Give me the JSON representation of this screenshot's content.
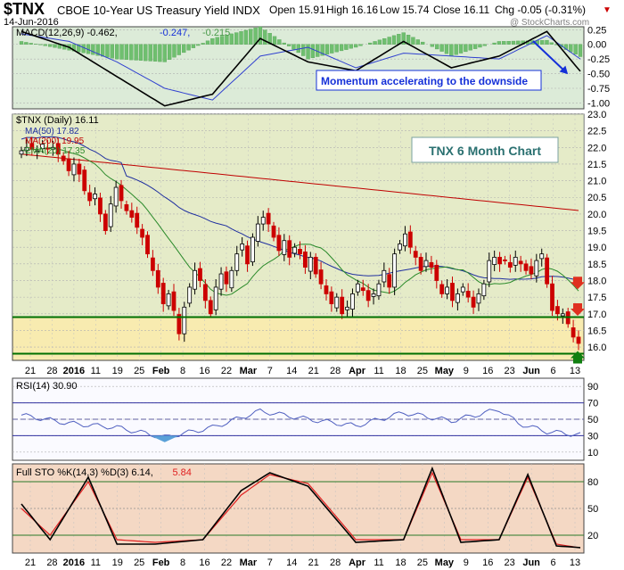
{
  "header": {
    "symbol": "$TNX",
    "name": "CBOE 10-Year US Treasury Yield INDX",
    "date": "14-Jun-2016",
    "open": "Open 15.91",
    "high": "High 16.16",
    "low": "Low 15.74",
    "close": "Close 16.11",
    "chg": "Chg -0.05 (-0.31%)",
    "watermark": "@ StockCharts.com"
  },
  "colors": {
    "macd_bg": "#dcebd8",
    "price_bg": "#f8ebb0",
    "rsi_bg": "#fafaff",
    "sto_bg": "#f4d8c4",
    "up": "#000000",
    "down": "#cc0000",
    "ma50": "#2030a0",
    "ma200": "#c00000",
    "ema20": "#2a8a2a",
    "annot_blue": "#1530d8",
    "support_green": "#007000"
  },
  "chart_data": [
    {
      "type": "line",
      "title": "MACD(12,26,9) -0.462, -0.247, -0.215",
      "legend": [
        "MACD(12,26,9) -0.462",
        "-0.247",
        "-0.215"
      ],
      "ylim": [
        -1.1,
        0.3
      ],
      "y_ticks": [
        "0.25",
        "0.00",
        "-0.25",
        "-0.50",
        "-0.75",
        "-1.00"
      ],
      "x": [
        0,
        10,
        20,
        30,
        40,
        50,
        60,
        70,
        80,
        90,
        100,
        110,
        117
      ],
      "series": [
        {
          "name": "MACD",
          "values": [
            0.22,
            -0.05,
            -0.55,
            -1.05,
            -0.85,
            0.1,
            -0.3,
            -0.45,
            0.05,
            -0.4,
            -0.2,
            0.22,
            -0.46
          ]
        },
        {
          "name": "Signal",
          "values": [
            0.18,
            0.05,
            -0.3,
            -0.75,
            -0.95,
            -0.2,
            -0.05,
            -0.4,
            -0.15,
            -0.2,
            -0.25,
            0.15,
            -0.25
          ]
        },
        {
          "name": "Histogram",
          "values": [
            0.05,
            -0.1,
            -0.25,
            -0.3,
            0.1,
            0.3,
            -0.25,
            -0.05,
            0.2,
            -0.2,
            0.05,
            0.07,
            -0.21
          ]
        }
      ],
      "annotation": "Momentum accelerating to the downside"
    },
    {
      "type": "candlestick",
      "title": "$TNX (Daily) 16.11",
      "ylim": [
        15.6,
        23.0
      ],
      "y_ticks": [
        "23.0",
        "22.5",
        "22.0",
        "21.5",
        "21.0",
        "20.5",
        "20.0",
        "19.5",
        "19.0",
        "18.5",
        "18.0",
        "17.5",
        "17.0",
        "16.5",
        "16.0"
      ],
      "x_ticks": [
        "21",
        "28",
        "2016",
        "11",
        "19",
        "25",
        "Feb",
        "8",
        "16",
        "22",
        "Mar",
        "7",
        "14",
        "21",
        "28",
        "Apr",
        "11",
        "18",
        "25",
        "May",
        "9",
        "16",
        "23",
        "Jun",
        "6",
        "13"
      ],
      "legend": [
        "$TNX (Daily) 16.11",
        "MA(50) 17.82",
        "MA(200) 19.95",
        "EMA(20) 17.35"
      ],
      "closes": [
        21.9,
        22.0,
        21.95,
        21.9,
        22.1,
        21.95,
        22.0,
        21.8,
        21.6,
        21.3,
        21.5,
        21.2,
        20.7,
        20.4,
        20.6,
        20.0,
        19.5,
        20.3,
        20.8,
        20.4,
        20.1,
        19.9,
        19.6,
        19.3,
        18.8,
        18.3,
        17.8,
        17.3,
        17.6,
        17.1,
        16.4,
        17.2,
        17.8,
        18.3,
        18.0,
        17.4,
        17.0,
        17.8,
        18.2,
        17.9,
        18.3,
        18.8,
        19.1,
        18.5,
        19.3,
        19.7,
        19.9,
        19.7,
        19.3,
        18.9,
        19.2,
        18.7,
        19.0,
        18.8,
        18.4,
        18.7,
        18.2,
        17.9,
        17.6,
        17.3,
        17.5,
        17.0,
        17.2,
        17.6,
        17.9,
        17.7,
        17.4,
        17.6,
        17.9,
        18.3,
        17.8,
        18.8,
        19.1,
        19.4,
        19.0,
        18.7,
        18.3,
        18.6,
        18.4,
        18.0,
        17.6,
        17.8,
        17.4,
        17.6,
        17.8,
        17.5,
        17.2,
        17.6,
        17.9,
        18.6,
        18.7,
        18.5,
        18.6,
        18.4,
        18.7,
        18.5,
        18.3,
        18.2,
        18.6,
        18.8,
        17.9,
        17.1,
        17.0,
        17.0,
        16.7,
        16.3,
        16.11
      ],
      "annotation": "TNX 6 Month Chart",
      "horizontal_levels": [
        16.9,
        15.8
      ]
    },
    {
      "type": "line",
      "title": "RSI(14) 30.90",
      "ylim": [
        0,
        100
      ],
      "y_ticks": [
        "90",
        "70",
        "50",
        "30",
        "10"
      ],
      "levels": [
        70,
        50,
        30
      ],
      "x": [
        0,
        10,
        20,
        30,
        40,
        50,
        60,
        70,
        80,
        90,
        100,
        104,
        110,
        117
      ],
      "series": [
        {
          "name": "RSI",
          "values": [
            55,
            45,
            40,
            28,
            40,
            60,
            50,
            42,
            58,
            48,
            62,
            45,
            35,
            30.9
          ]
        }
      ]
    },
    {
      "type": "line",
      "title": "Full STO %K(14,3) %D(3) 6.14, 5.84",
      "ylim": [
        0,
        100
      ],
      "y_ticks": [
        "80",
        "50",
        "20"
      ],
      "levels": [
        80,
        20
      ],
      "x": [
        0,
        6,
        14,
        20,
        28,
        38,
        46,
        52,
        60,
        70,
        80,
        86,
        92,
        100,
        106,
        112,
        117
      ],
      "series": [
        {
          "name": "%K",
          "values": [
            55,
            15,
            85,
            10,
            10,
            15,
            70,
            90,
            75,
            12,
            15,
            95,
            12,
            15,
            88,
            8,
            6.14
          ]
        },
        {
          "name": "%D",
          "values": [
            50,
            20,
            80,
            15,
            12,
            15,
            65,
            88,
            78,
            15,
            15,
            90,
            15,
            15,
            85,
            10,
            5.84
          ]
        }
      ]
    }
  ]
}
